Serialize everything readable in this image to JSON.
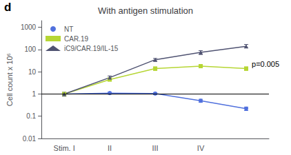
{
  "chart_data": {
    "type": "line",
    "title": "With antigen stimulation",
    "panel_label": "d",
    "ylabel": "Cell count x 10⁶",
    "categories": [
      "Stim. I",
      "II",
      "III",
      "IV",
      null
    ],
    "series": [
      {
        "name": "NT",
        "marker": "circle",
        "values": [
          1.0,
          1.1,
          1.05,
          0.5,
          0.22
        ],
        "yerr_lo": [
          0.1,
          0.12,
          0.12,
          0.08,
          0.04
        ],
        "yerr_hi": [
          0.1,
          0.12,
          0.12,
          0.08,
          0.04
        ]
      },
      {
        "name": "CAR.19",
        "marker": "square",
        "values": [
          1.0,
          4.5,
          14.0,
          18.0,
          14.0
        ],
        "yerr_lo": [
          0.2,
          0.7,
          2.5,
          3.0,
          2.5
        ],
        "yerr_hi": [
          0.2,
          0.7,
          2.5,
          3.0,
          2.5
        ]
      },
      {
        "name": "iC9/CAR.19/IL-15",
        "marker": "triangle",
        "values": [
          1.0,
          5.5,
          35.0,
          75.0,
          140.0
        ],
        "yerr_lo": [
          0.2,
          1.0,
          5.0,
          15.0,
          20.0
        ],
        "yerr_hi": [
          0.2,
          1.0,
          5.0,
          15.0,
          30.0
        ]
      }
    ],
    "log": "y",
    "ylim": [
      0.01,
      2000
    ],
    "yticks": [
      0.01,
      0.1,
      1,
      10,
      100,
      1000
    ],
    "grid": false,
    "legend": "upper left",
    "reference_line": 1,
    "annotations": [
      {
        "text": "p=0.005",
        "y": 22
      }
    ]
  }
}
